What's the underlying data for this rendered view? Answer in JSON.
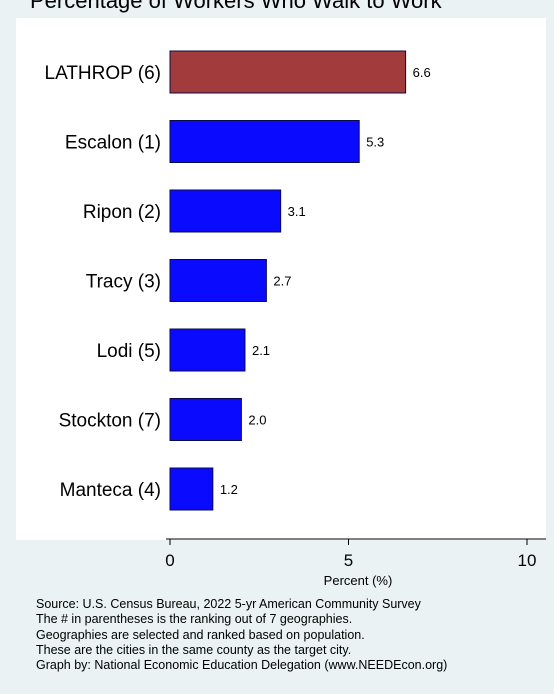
{
  "title": "Percentage of Workers Who Walk to Work",
  "chart_data": {
    "type": "bar",
    "orientation": "horizontal",
    "categories": [
      "LATHROP (6)",
      "Escalon (1)",
      "Ripon (2)",
      "Tracy (3)",
      "Lodi (5)",
      "Stockton (7)",
      "Manteca (4)"
    ],
    "values": [
      6.6,
      5.3,
      3.1,
      2.7,
      2.1,
      2.0,
      1.2
    ],
    "value_labels": [
      "6.6",
      "5.3",
      "3.1",
      "2.7",
      "2.1",
      "2.0",
      "1.2"
    ],
    "xlabel": "Percent (%)",
    "ylabel": "",
    "xlim": [
      0,
      10
    ],
    "xticks": [
      "0",
      "5",
      "10"
    ],
    "grid": false,
    "colors": {
      "highlight": "#a23b3b",
      "default": "#0a0aff",
      "bar_edge": "#0b0b4a"
    }
  },
  "notes": [
    "Source: U.S. Census Bureau, 2022 5-yr American Community Survey",
    "The # in parentheses is the ranking out of 7 geographies.",
    "Geographies are selected and ranked based on population.",
    "These are the cities in the same county as the target city.",
    "Graph by: National Economic Education Delegation (www.NEEDEcon.org)"
  ]
}
